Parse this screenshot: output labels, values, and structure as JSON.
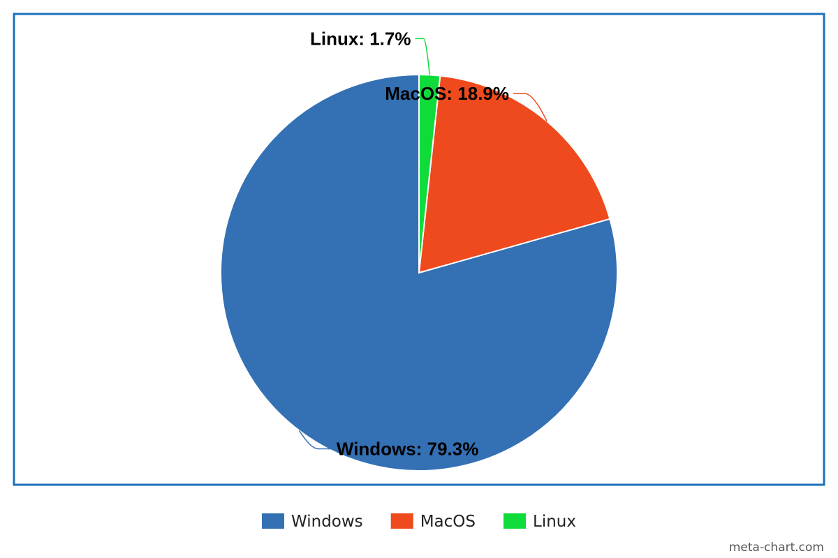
{
  "chart_data": {
    "type": "pie",
    "categories": [
      "Windows",
      "MacOS",
      "Linux"
    ],
    "values": [
      79.3,
      18.9,
      1.7
    ],
    "colors": [
      "#3470b4",
      "#ee4a1d",
      "#0fdc3b"
    ],
    "data_labels": [
      "Windows: 79.3%",
      "MacOS: 18.9%",
      "Linux: 1.7%"
    ],
    "start_angle_deg": 0,
    "direction": "counter-clockwise",
    "title": "",
    "legend": {
      "placement": "bottom-center",
      "entries": [
        "Windows",
        "MacOS",
        "Linux"
      ]
    },
    "frame_color": "#1d6fb8"
  },
  "watermark": "meta-chart.com"
}
